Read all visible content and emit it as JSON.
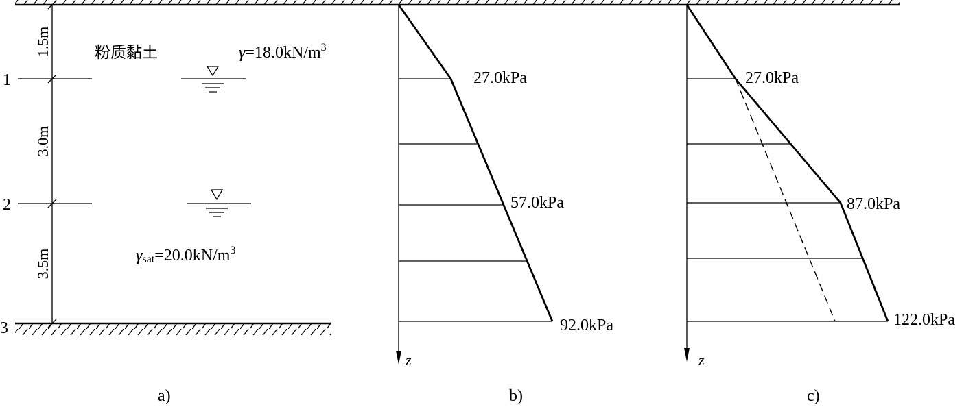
{
  "panel_a": {
    "caption": "a)",
    "layer_name": "粉质黏土",
    "gamma_symbol": "γ",
    "gamma_value": "=18.0kN/m",
    "gamma_exp": "3",
    "gamma_sat_symbol": "γ",
    "gamma_sat_sub": "sat",
    "gamma_sat_value": "=20.0kN/m",
    "gamma_sat_exp": "3",
    "levels": [
      "1",
      "2",
      "3"
    ],
    "thicknesses": [
      "1.5m",
      "3.0m",
      "3.5m"
    ]
  },
  "panel_b": {
    "caption": "b)",
    "axis_label": "z",
    "values": [
      "27.0kPa",
      "57.0kPa",
      "92.0kPa"
    ]
  },
  "panel_c": {
    "caption": "c)",
    "axis_label": "z",
    "values": [
      "27.0kPa",
      "87.0kPa",
      "122.0kPa"
    ]
  }
}
